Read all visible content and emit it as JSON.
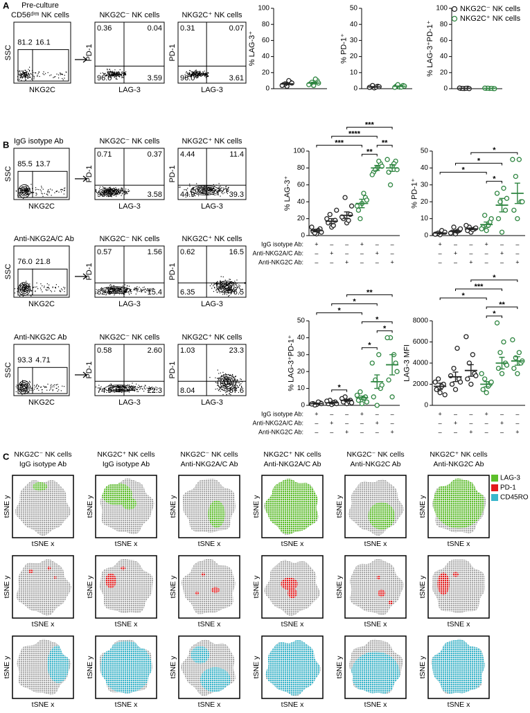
{
  "panel_a": {
    "label": "A",
    "title": "Pre-culture",
    "subtitle": "CD56ᵈⁱᵐ NK cells",
    "gate_plot": {
      "xlabel": "NKG2C",
      "ylabel": "SSC",
      "gates": [
        "81.2",
        "16.1"
      ]
    },
    "quadrant_plots": [
      {
        "title": "NKG2C⁻ NK cells",
        "xlabel": "LAG-3",
        "ylabel": "PD-1",
        "quadrants": [
          "0.36",
          "0.04",
          "96.0",
          "3.59"
        ]
      },
      {
        "title": "NKG2C⁺ NK cells",
        "xlabel": "LAG-3",
        "ylabel": "PD-1",
        "quadrants": [
          "0.31",
          "0.07",
          "96.0",
          "3.61"
        ]
      }
    ]
  },
  "panel_b": {
    "label": "B",
    "rows": [
      {
        "title": "IgG isotype Ab",
        "gate_plot": {
          "xlabel": "NKG2C",
          "ylabel": "SSC",
          "gates": [
            "85.5",
            "13.7"
          ]
        },
        "quadrant_plots": [
          {
            "title": "NKG2C⁻ NK cells",
            "xlabel": "LAG-3",
            "ylabel": "PD-1",
            "quadrants": [
              "0.71",
              "0.37",
              "93.3",
              "3.58"
            ]
          },
          {
            "title": "NKG2C⁺ NK cells",
            "xlabel": "LAG-3",
            "ylabel": "PD-1",
            "quadrants": [
              "4.44",
              "11.4",
              "44.9",
              "39.3"
            ]
          }
        ]
      },
      {
        "title": "Anti-NKG2A/C Ab",
        "gate_plot": {
          "xlabel": "NKG2C",
          "ylabel": "SSC",
          "gates": [
            "76.0",
            "21.8"
          ]
        },
        "quadrant_plots": [
          {
            "title": "NKG2C⁻ NK cells",
            "xlabel": "LAG-3",
            "ylabel": "PD-1",
            "quadrants": [
              "0.57",
              "1.56",
              "82.5",
              "15.4"
            ]
          },
          {
            "title": "NKG2C⁺ NK cells",
            "xlabel": "LAG-3",
            "ylabel": "PD-1",
            "quadrants": [
              "0.62",
              "16.5",
              "6.35",
              "76.5"
            ]
          }
        ]
      },
      {
        "title": "Anti-NKG2C Ab",
        "gate_plot": {
          "xlabel": "NKG2C",
          "ylabel": "SSC",
          "gates": [
            "93.3",
            "4.71"
          ]
        },
        "quadrant_plots": [
          {
            "title": "NKG2C⁻ NK cells",
            "xlabel": "LAG-3",
            "ylabel": "PD-1",
            "quadrants": [
              "0.58",
              "2.60",
              "74.5",
              "22.3"
            ]
          },
          {
            "title": "NKG2C⁺ NK cells",
            "xlabel": "LAG-3",
            "ylabel": "PD-1",
            "quadrants": [
              "1.03",
              "23.3",
              "8.04",
              "67.6"
            ]
          }
        ]
      }
    ]
  },
  "panel_c": {
    "label": "C",
    "x_label": "tSNE x",
    "y_label": "tSNE y",
    "columns": [
      {
        "cells": "NKG2C⁻ NK cells",
        "treatment": "IgG isotype Ab"
      },
      {
        "cells": "NKG2C⁺ NK cells",
        "treatment": "IgG isotype Ab"
      },
      {
        "cells": "NKG2C⁻ NK cells",
        "treatment": "Anti-NKG2A/C Ab"
      },
      {
        "cells": "NKG2C⁺ NK cells",
        "treatment": "Anti-NKG2A/C Ab"
      },
      {
        "cells": "NKG2C⁻ NK cells",
        "treatment": "Anti-NKG2C Ab"
      },
      {
        "cells": "NKG2C⁺ NK cells",
        "treatment": "Anti-NKG2C Ab"
      }
    ],
    "legend": [
      {
        "label": "LAG-3",
        "color": "#5cbf2a"
      },
      {
        "label": "PD-1",
        "color": "#e31a1c"
      },
      {
        "label": "CD45RO",
        "color": "#3ab7cc"
      }
    ]
  },
  "chart_data": [
    {
      "type": "dot",
      "ylabel": "% LAG-3⁺",
      "ylim": [
        0,
        100
      ],
      "yticks": [
        0,
        20,
        40,
        60,
        80,
        100
      ],
      "series": [
        {
          "color": "#222222",
          "values": [
            3,
            5,
            8,
            6,
            10,
            4,
            7
          ],
          "mean": 6,
          "sem": 1
        },
        {
          "color": "#2e8540",
          "values": [
            4,
            6,
            10,
            8,
            12,
            5,
            7
          ],
          "mean": 7,
          "sem": 1
        }
      ]
    },
    {
      "type": "dot",
      "ylabel": "% PD-1⁺",
      "ylim": [
        0,
        50
      ],
      "yticks": [
        0,
        10,
        20,
        30,
        40,
        50
      ],
      "series": [
        {
          "color": "#222222",
          "values": [
            0.5,
            1,
            1.5,
            2,
            1,
            0.8,
            1.2
          ],
          "mean": 1.1,
          "sem": 0.2
        },
        {
          "color": "#2e8540",
          "values": [
            1,
            1.5,
            2,
            2.5,
            1,
            0.8,
            1.6
          ],
          "mean": 1.5,
          "sem": 0.2
        }
      ]
    },
    {
      "type": "dot",
      "ylabel": "% LAG-3⁺PD-1⁺",
      "ylim": [
        0,
        100
      ],
      "yticks": [
        0,
        20,
        40,
        60,
        80,
        100
      ],
      "legend": "upper left",
      "series": [
        {
          "name": "NKG2C⁻ NK cells",
          "color": "#222222",
          "values": [
            0.2,
            0.4,
            0.6,
            0.3,
            0.5,
            0.8,
            0.1
          ],
          "mean": 0.4,
          "sem": 0.1
        },
        {
          "name": "NKG2C⁺ NK cells",
          "color": "#2e8540",
          "values": [
            0.3,
            0.5,
            0.2,
            0.6,
            0.4,
            0.7,
            0.1
          ],
          "mean": 0.4,
          "sem": 0.1
        }
      ]
    },
    {
      "type": "dot",
      "ylabel": "% LAG-3⁺",
      "ylim": [
        0,
        100
      ],
      "yticks": [
        0,
        20,
        40,
        60,
        80,
        100
      ],
      "series": [
        {
          "color": "#222222",
          "values": [
            2,
            5,
            8,
            3,
            6,
            10,
            4
          ],
          "mean": 6,
          "sem": 1.5
        },
        {
          "color": "#222222",
          "values": [
            10,
            15,
            18,
            25,
            12,
            20,
            30
          ],
          "mean": 17,
          "sem": 3
        },
        {
          "color": "#222222",
          "values": [
            15,
            20,
            25,
            45,
            18,
            22,
            35
          ],
          "mean": 24,
          "sem": 4
        },
        {
          "color": "#2e8540",
          "values": [
            38,
            30,
            45,
            20,
            50,
            35,
            42
          ],
          "mean": 38,
          "sem": 5
        },
        {
          "color": "#2e8540",
          "values": [
            80,
            75,
            85,
            78,
            88,
            72,
            82
          ],
          "mean": 80,
          "sem": 3
        },
        {
          "color": "#2e8540",
          "values": [
            82,
            75,
            88,
            60,
            85,
            90,
            78
          ],
          "mean": 80,
          "sem": 4
        }
      ],
      "conditions": [
        {
          "label": "IgG isotype Ab:",
          "signs": [
            "+",
            "–",
            "–",
            "+",
            "–",
            "–"
          ]
        },
        {
          "label": "Anti-NKG2A/C Ab:",
          "signs": [
            "–",
            "+",
            "–",
            "–",
            "+",
            "–"
          ]
        },
        {
          "label": "Anti-NKG2C Ab:",
          "signs": [
            "–",
            "–",
            "+",
            "–",
            "–",
            "+"
          ]
        }
      ],
      "significance": [
        {
          "between": [
            3,
            4
          ],
          "label": "**"
        },
        {
          "between": [
            4,
            5
          ],
          "label": "**"
        },
        {
          "between": [
            0,
            3
          ],
          "label": "***"
        },
        {
          "between": [
            1,
            4
          ],
          "label": "****"
        },
        {
          "between": [
            2,
            5
          ],
          "label": "***"
        }
      ]
    },
    {
      "type": "dot",
      "ylabel": "% PD-1⁺",
      "ylim": [
        0,
        50
      ],
      "yticks": [
        0,
        10,
        20,
        30,
        40,
        50
      ],
      "series": [
        {
          "color": "#222222",
          "values": [
            0.5,
            1,
            2,
            1.5,
            3,
            0.8,
            2
          ],
          "mean": 1.5,
          "sem": 0.4
        },
        {
          "color": "#222222",
          "values": [
            1,
            2,
            3,
            5,
            2.5,
            1.5,
            4
          ],
          "mean": 2.5,
          "sem": 0.6
        },
        {
          "color": "#222222",
          "values": [
            2,
            3,
            4,
            5,
            3.5,
            6,
            4.5
          ],
          "mean": 4,
          "sem": 0.5
        },
        {
          "color": "#2e8540",
          "values": [
            3,
            5,
            8,
            12,
            6,
            4,
            10
          ],
          "mean": 6.5,
          "sem": 1.5
        },
        {
          "color": "#2e8540",
          "values": [
            2,
            10,
            15,
            20,
            28,
            25,
            22
          ],
          "mean": 18,
          "sem": 4
        },
        {
          "color": "#2e8540",
          "values": [
            10,
            15,
            20,
            35,
            45,
            45,
            20
          ],
          "mean": 25,
          "sem": 6
        }
      ],
      "conditions": [
        {
          "signs": [
            "+",
            "–",
            "–",
            "+",
            "–",
            "–"
          ]
        },
        {
          "signs": [
            "–",
            "+",
            "–",
            "–",
            "+",
            "–"
          ]
        },
        {
          "signs": [
            "–",
            "–",
            "+",
            "–",
            "–",
            "+"
          ]
        }
      ],
      "significance": [
        {
          "between": [
            3,
            4
          ],
          "label": "*"
        },
        {
          "between": [
            0,
            3
          ],
          "label": "*"
        },
        {
          "between": [
            1,
            4
          ],
          "label": "*"
        },
        {
          "between": [
            2,
            5
          ],
          "label": "*"
        }
      ]
    },
    {
      "type": "dot",
      "ylabel": "% LAG-3⁺PD-1⁺",
      "ylim": [
        0,
        50
      ],
      "yticks": [
        0,
        10,
        20,
        30,
        40,
        50
      ],
      "series": [
        {
          "color": "#222222",
          "values": [
            0.5,
            1,
            1.5,
            0.2,
            2,
            0.8,
            1
          ],
          "mean": 1,
          "sem": 0.3
        },
        {
          "color": "#222222",
          "values": [
            0.5,
            1,
            2,
            3,
            1.5,
            2.5,
            1
          ],
          "mean": 1.5,
          "sem": 0.4
        },
        {
          "color": "#222222",
          "values": [
            1,
            2,
            3,
            5,
            2.5,
            4,
            1.5
          ],
          "mean": 3,
          "sem": 0.6
        },
        {
          "color": "#2e8540",
          "values": [
            1,
            3,
            5,
            8,
            4,
            6,
            2
          ],
          "mean": 4.5,
          "sem": 1
        },
        {
          "color": "#2e8540",
          "values": [
            0,
            5,
            10,
            15,
            30,
            25,
            12
          ],
          "mean": 14,
          "sem": 4
        },
        {
          "color": "#2e8540",
          "values": [
            5,
            15,
            25,
            40,
            30,
            40,
            20
          ],
          "mean": 24,
          "sem": 6
        }
      ],
      "conditions": [
        {
          "label": "IgG isotype Ab:",
          "signs": [
            "+",
            "–",
            "–",
            "+",
            "–",
            "–"
          ]
        },
        {
          "label": "Anti-NKG2A/C Ab:",
          "signs": [
            "–",
            "+",
            "–",
            "–",
            "+",
            "–"
          ]
        },
        {
          "label": "Anti-NKG2C Ab:",
          "signs": [
            "–",
            "–",
            "+",
            "–",
            "–",
            "+"
          ]
        }
      ],
      "significance": [
        {
          "between": [
            1,
            2
          ],
          "label": "*"
        },
        {
          "between": [
            3,
            4
          ],
          "label": "*"
        },
        {
          "between": [
            4,
            5
          ],
          "label": "*"
        },
        {
          "between": [
            3,
            5
          ],
          "label": "*"
        },
        {
          "between": [
            0,
            3
          ],
          "label": "*"
        },
        {
          "between": [
            1,
            4
          ],
          "label": "*"
        },
        {
          "between": [
            2,
            5
          ],
          "label": "**"
        }
      ]
    },
    {
      "type": "dot",
      "ylabel": "LAG-3 MFI",
      "ylim": [
        0,
        8000
      ],
      "yticks": [
        0,
        2000,
        4000,
        6000,
        8000
      ],
      "series": [
        {
          "color": "#222222",
          "values": [
            1200,
            1500,
            2000,
            2500,
            1800,
            2200,
            1000
          ],
          "mean": 1800,
          "sem": 300
        },
        {
          "color": "#222222",
          "values": [
            1500,
            2000,
            2500,
            3500,
            5400,
            2800,
            2200
          ],
          "mean": 2700,
          "sem": 450
        },
        {
          "color": "#222222",
          "values": [
            2000,
            2500,
            3000,
            4000,
            4800,
            6500,
            2800
          ],
          "mean": 3300,
          "sem": 550
        },
        {
          "color": "#2e8540",
          "values": [
            1200,
            1500,
            2000,
            2500,
            1800,
            3000,
            2200
          ],
          "mean": 2000,
          "sem": 250
        },
        {
          "color": "#2e8540",
          "values": [
            3000,
            3500,
            4000,
            5000,
            6000,
            7800,
            3800
          ],
          "mean": 4000,
          "sem": 550
        },
        {
          "color": "#2e8540",
          "values": [
            3000,
            3500,
            4000,
            4500,
            5000,
            6200,
            4200
          ],
          "mean": 4200,
          "sem": 400
        }
      ],
      "conditions": [
        {
          "signs": [
            "+",
            "–",
            "–",
            "+",
            "–",
            "–"
          ]
        },
        {
          "signs": [
            "–",
            "+",
            "–",
            "–",
            "+",
            "–"
          ]
        },
        {
          "signs": [
            "–",
            "–",
            "+",
            "–",
            "–",
            "+"
          ]
        }
      ],
      "significance": [
        {
          "between": [
            3,
            4
          ],
          "label": "*"
        },
        {
          "between": [
            3,
            5
          ],
          "label": "**"
        },
        {
          "between": [
            0,
            3
          ],
          "label": "*"
        },
        {
          "between": [
            1,
            4
          ],
          "label": "***"
        },
        {
          "between": [
            2,
            5
          ],
          "label": "*"
        }
      ]
    }
  ]
}
